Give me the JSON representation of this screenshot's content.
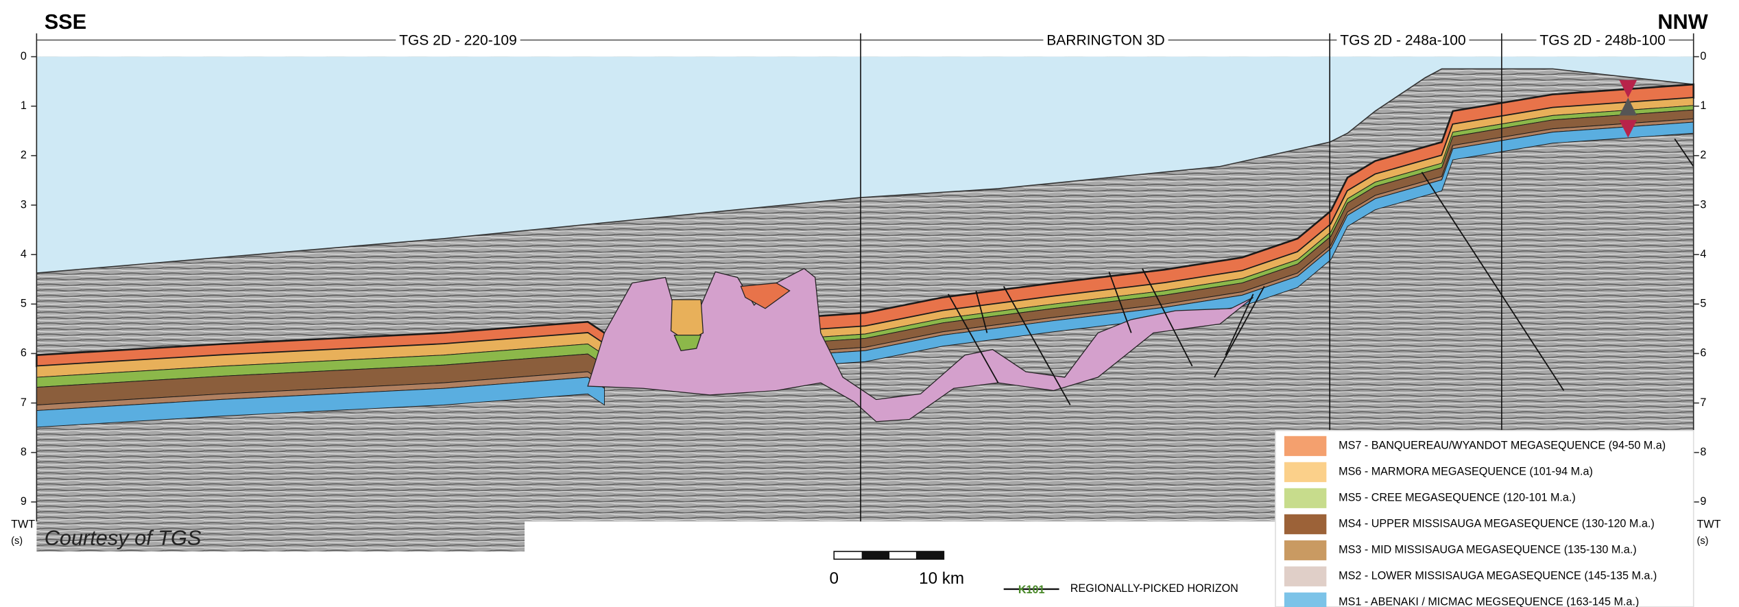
{
  "section": {
    "left_direction": "SSE",
    "right_direction": "NNW",
    "survey_lines": [
      "TGS 2D - 220-109",
      "BARRINGTON 3D",
      "TGS 2D - 248a-100",
      "TGS 2D - 248b-100"
    ],
    "credit": "Courtesy of TGS"
  },
  "time_axis": {
    "ticks": [
      0,
      1,
      2,
      3,
      4,
      5,
      6,
      7,
      8,
      9
    ],
    "label": "TWT",
    "unit": "(s)"
  },
  "scale_bar": {
    "start": "0",
    "end": "10 km"
  },
  "legend": {
    "entries": [
      "MS7 - BANQUEREAU/WYANDOT MEGASEQUENCE (94-50 M.a)",
      "MS6 - MARMORA MEGASEQUENCE (101-94 M.a)",
      "MS5 - CREE MEGASEQUENCE (120-101 M.a.)",
      "MS4 - UPPER MISSISAUGA MEGASEQUENCE (130-120 M.a.)",
      "MS3 - MID MISSISAUGA MEGASEQUENCE (135-130 M.a.)",
      "MS2 - LOWER MISSISAUGA MEGASEQUENCE (145-135 M.a.)",
      "MS1 - ABENAKI / MICMAC MEGSEQUENCE (163-145 M.a.)"
    ],
    "colors": [
      "#f4a06e",
      "#fbd08a",
      "#c7dc8c",
      "#9c6238",
      "#c99a62",
      "#e0cfc8",
      "#7cc3e8"
    ],
    "horizon_symbol": "K101",
    "horizon_label": "REGIONALLY-PICKED HORIZON"
  }
}
